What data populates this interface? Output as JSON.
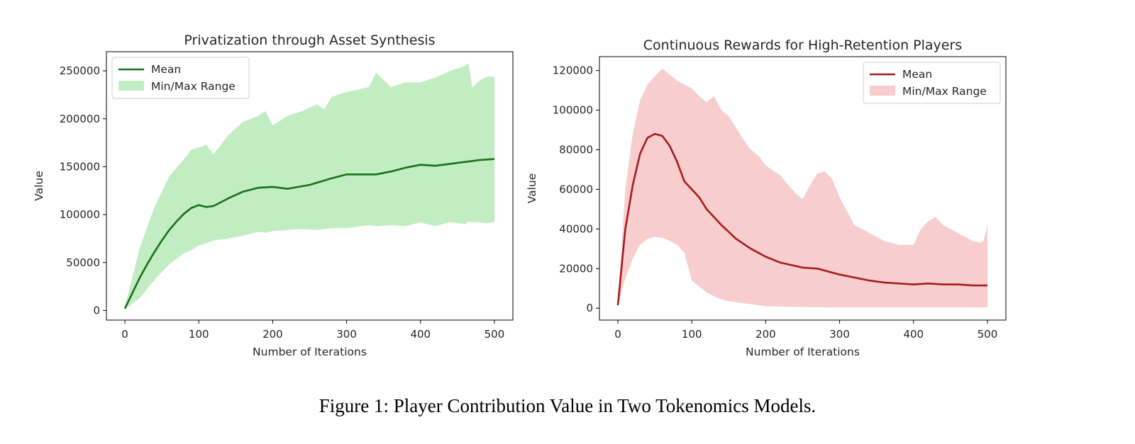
{
  "chart_data": [
    {
      "type": "line",
      "title": "Privatization through Asset Synthesis",
      "xlabel": "Number of Iterations",
      "ylabel": "Value",
      "xlim": [
        -25,
        525
      ],
      "ylim": [
        -10000,
        270000
      ],
      "xticks": [
        0,
        100,
        200,
        300,
        400,
        500
      ],
      "yticks": [
        0,
        50000,
        100000,
        150000,
        200000,
        250000
      ],
      "legend": "top-left",
      "grid": false,
      "colors": {
        "mean": "#1a6e1a",
        "band": "#a8e6a8"
      },
      "series": [
        {
          "name": "Mean",
          "x": [
            0,
            10,
            20,
            30,
            40,
            50,
            60,
            70,
            80,
            90,
            100,
            110,
            120,
            140,
            160,
            180,
            200,
            220,
            250,
            280,
            300,
            340,
            360,
            380,
            400,
            420,
            440,
            460,
            480,
            500
          ],
          "y": [
            2000,
            18000,
            34000,
            48000,
            61000,
            73000,
            84000,
            93000,
            101000,
            107000,
            110000,
            108000,
            109000,
            117000,
            124000,
            128000,
            129000,
            127000,
            131000,
            138000,
            142000,
            142000,
            145000,
            149000,
            152000,
            151000,
            153000,
            155000,
            157000,
            158000
          ]
        },
        {
          "name": "Min/Max Range",
          "x": [
            0,
            20,
            40,
            60,
            80,
            90,
            100,
            110,
            120,
            140,
            160,
            180,
            190,
            200,
            220,
            240,
            260,
            270,
            280,
            300,
            330,
            340,
            360,
            380,
            400,
            420,
            440,
            460,
            465,
            470,
            480,
            490,
            500
          ],
          "upper": [
            4000,
            65000,
            108000,
            140000,
            158000,
            168000,
            170000,
            173000,
            163000,
            183000,
            197000,
            203000,
            208000,
            193000,
            203000,
            208000,
            215000,
            210000,
            223000,
            228000,
            233000,
            248000,
            233000,
            238000,
            238000,
            243000,
            250000,
            255000,
            258000,
            232000,
            240000,
            244000,
            244000
          ],
          "lower": [
            1000,
            13000,
            32000,
            48000,
            60000,
            63000,
            68000,
            70000,
            73000,
            75000,
            78000,
            82000,
            81000,
            83000,
            84000,
            85000,
            84000,
            85000,
            86000,
            86000,
            89000,
            88000,
            89000,
            88000,
            92000,
            88000,
            92000,
            90000,
            93000,
            92000,
            92000,
            91000,
            92000
          ]
        }
      ]
    },
    {
      "type": "line",
      "title": "Continuous Rewards for High-Retention Players",
      "xlabel": "Number of Iterations",
      "ylabel": "Value",
      "xlim": [
        -25,
        525
      ],
      "ylim": [
        -6000,
        127000
      ],
      "xticks": [
        0,
        100,
        200,
        300,
        400,
        500
      ],
      "yticks": [
        0,
        20000,
        40000,
        60000,
        80000,
        100000,
        120000
      ],
      "legend": "top-right",
      "grid": false,
      "colors": {
        "mean": "#a51c1c",
        "band": "#f5b8b8"
      },
      "series": [
        {
          "name": "Mean",
          "x": [
            0,
            10,
            20,
            30,
            40,
            50,
            60,
            70,
            80,
            90,
            100,
            110,
            120,
            140,
            160,
            180,
            200,
            220,
            250,
            270,
            300,
            340,
            360,
            380,
            400,
            420,
            440,
            460,
            480,
            500
          ],
          "y": [
            1500,
            40000,
            62000,
            78000,
            86000,
            88000,
            87000,
            82000,
            74000,
            64000,
            60000,
            56000,
            50000,
            42000,
            35000,
            30000,
            26000,
            23000,
            20500,
            20000,
            17000,
            14000,
            13000,
            12500,
            12000,
            12500,
            12000,
            12000,
            11500,
            11500
          ]
        },
        {
          "name": "Min/Max Range",
          "x": [
            0,
            10,
            20,
            30,
            40,
            50,
            60,
            70,
            80,
            90,
            100,
            110,
            120,
            130,
            140,
            150,
            160,
            170,
            180,
            190,
            200,
            220,
            240,
            250,
            260,
            270,
            280,
            290,
            300,
            320,
            340,
            360,
            380,
            400,
            410,
            420,
            430,
            440,
            450,
            460,
            470,
            480,
            490,
            495,
            500
          ],
          "upper": [
            2000,
            60000,
            88000,
            105000,
            113000,
            117000,
            121000,
            118000,
            115000,
            113000,
            111000,
            107000,
            104000,
            107000,
            100000,
            97000,
            91000,
            85000,
            80000,
            77000,
            72000,
            67000,
            58000,
            55000,
            62000,
            68000,
            69000,
            65000,
            56000,
            42000,
            38000,
            34000,
            32000,
            32000,
            40000,
            44000,
            46000,
            42000,
            40000,
            38000,
            36000,
            34000,
            33000,
            34000,
            42000
          ],
          "lower": [
            1000,
            15000,
            25000,
            32000,
            35000,
            36000,
            35500,
            34000,
            32000,
            28000,
            14000,
            11000,
            8000,
            6000,
            4500,
            3500,
            3000,
            2500,
            2000,
            1500,
            1000,
            800,
            700,
            600,
            500,
            500,
            400,
            400,
            400,
            400,
            400,
            400,
            400,
            400,
            400,
            400,
            400,
            400,
            400,
            400,
            400,
            400,
            400,
            400,
            400
          ]
        }
      ]
    }
  ],
  "caption": "Figure 1: Player Contribution Value in Two Tokenomics Models."
}
